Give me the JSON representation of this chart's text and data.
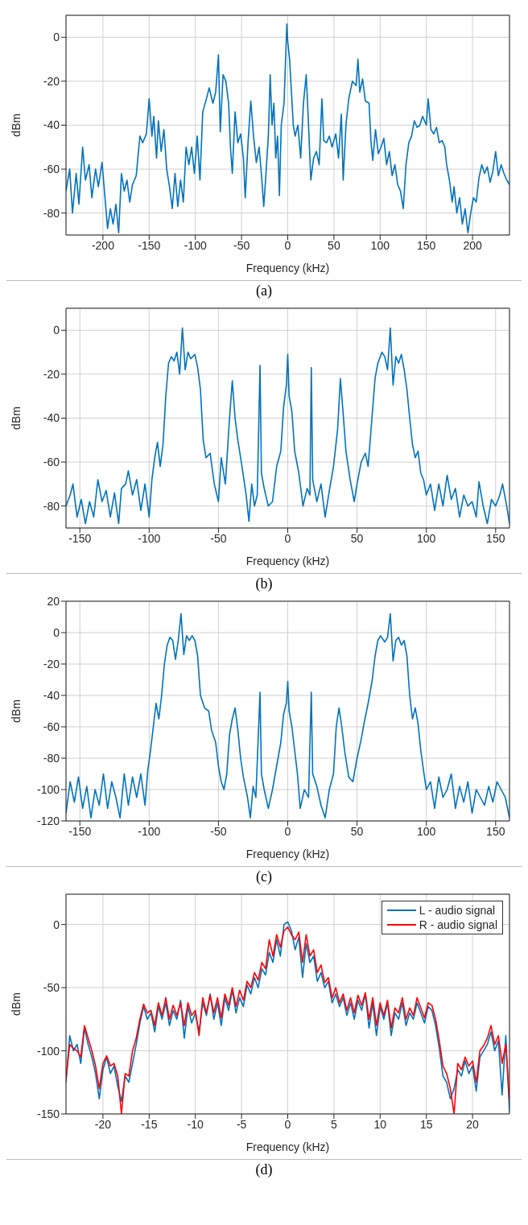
{
  "chart_data": [
    {
      "type": "line",
      "xlabel": "Frequency (kHz)",
      "ylabel": "dBm",
      "annotations": [
        "(a)"
      ],
      "xlim": [
        -240,
        240
      ],
      "ylim": [
        -90,
        10
      ],
      "xticks": [
        -200,
        -150,
        -100,
        -50,
        0,
        50,
        100,
        150,
        200
      ],
      "yticks": [
        -80,
        -60,
        -40,
        -20,
        0
      ],
      "grid": true,
      "line_style": "solid",
      "marker": "none",
      "series": [
        {
          "color": "#0072bd",
          "x": [
            -240,
            -236,
            -233,
            -229,
            -226,
            -222,
            -219,
            -215,
            -212,
            -208,
            -205,
            -201,
            -198,
            -195,
            -192,
            -189,
            -186,
            -183,
            -180,
            -177,
            -174,
            -171,
            -168,
            -164,
            -160,
            -157,
            -153,
            -150,
            -147,
            -145,
            -142,
            -140,
            -137,
            -134,
            -131,
            -128,
            -125,
            -122,
            -119,
            -116,
            -113,
            -110,
            -107,
            -104,
            -101,
            -98,
            -95,
            -92,
            -88,
            -85,
            -81,
            -78,
            -75,
            -73,
            -70,
            -67,
            -64,
            -62,
            -60,
            -57,
            -54,
            -51,
            -48,
            -46,
            -43,
            -40,
            -37,
            -34,
            -31,
            -28,
            -26,
            -24,
            -21,
            -19,
            -17,
            -15,
            -13,
            -11,
            -9,
            -7,
            -4,
            -1,
            0,
            2,
            4,
            6,
            8,
            11,
            14,
            17,
            20,
            22,
            25,
            28,
            31,
            34,
            37,
            39,
            42,
            45,
            48,
            52,
            55,
            58,
            60,
            63,
            66,
            70,
            74,
            76,
            78,
            81,
            84,
            88,
            90,
            92,
            95,
            98,
            101,
            104,
            107,
            110,
            113,
            116,
            119,
            122,
            125,
            128,
            131,
            134,
            137,
            140,
            143,
            146,
            150,
            152,
            155,
            158,
            161,
            164,
            167,
            170,
            172,
            175,
            178,
            180,
            183,
            186,
            189,
            192,
            195,
            198,
            201,
            204,
            207,
            210,
            213,
            216,
            219,
            222,
            225,
            228,
            231,
            234,
            237,
            240
          ],
          "values": [
            -70,
            -60,
            -80,
            -62,
            -76,
            -50,
            -65,
            -58,
            -73,
            -60,
            -68,
            -57,
            -72,
            -87,
            -78,
            -85,
            -76,
            -89,
            -62,
            -70,
            -65,
            -75,
            -67,
            -63,
            -45,
            -48,
            -44,
            -28,
            -45,
            -36,
            -55,
            -38,
            -52,
            -42,
            -60,
            -68,
            -78,
            -62,
            -77,
            -65,
            -75,
            -50,
            -58,
            -50,
            -62,
            -45,
            -65,
            -34,
            -28,
            -23,
            -30,
            -25,
            -8,
            -43,
            -17,
            -20,
            -30,
            -50,
            -62,
            -34,
            -48,
            -44,
            -55,
            -73,
            -48,
            -29,
            -45,
            -57,
            -50,
            -65,
            -77,
            -65,
            -45,
            -17,
            -40,
            -30,
            -55,
            -45,
            -72,
            -40,
            -30,
            6,
            -2,
            -10,
            -25,
            -40,
            -45,
            -40,
            -55,
            -30,
            -17,
            -35,
            -65,
            -55,
            -52,
            -58,
            -28,
            -47,
            -48,
            -45,
            -50,
            -44,
            -55,
            -35,
            -65,
            -40,
            -28,
            -20,
            -22,
            -10,
            -25,
            -19,
            -29,
            -30,
            -47,
            -56,
            -42,
            -53,
            -50,
            -46,
            -58,
            -52,
            -63,
            -58,
            -67,
            -70,
            -78,
            -58,
            -48,
            -45,
            -38,
            -41,
            -40,
            -36,
            -40,
            -28,
            -42,
            -44,
            -41,
            -48,
            -47,
            -50,
            -58,
            -65,
            -75,
            -68,
            -80,
            -73,
            -85,
            -78,
            -89,
            -80,
            -73,
            -75,
            -64,
            -58,
            -62,
            -59,
            -66,
            -61,
            -52,
            -63,
            -58,
            -62,
            -65,
            -67
          ]
        }
      ]
    },
    {
      "type": "line",
      "xlabel": "Frequency (kHz)",
      "ylabel": "dBm",
      "annotations": [
        "(b)"
      ],
      "xlim": [
        -160,
        160
      ],
      "ylim": [
        -90,
        10
      ],
      "xticks": [
        -150,
        -100,
        -50,
        0,
        50,
        100,
        150
      ],
      "yticks": [
        -80,
        -60,
        -40,
        -20,
        0
      ],
      "grid": true,
      "line_style": "solid",
      "marker": "none",
      "series": [
        {
          "color": "#0072bd",
          "x": [
            -160,
            -157,
            -155,
            -152,
            -149,
            -146,
            -143,
            -140,
            -137,
            -134,
            -131,
            -128,
            -125,
            -122,
            -120,
            -117,
            -115,
            -112,
            -109,
            -106,
            -103,
            -100,
            -98,
            -96,
            -94,
            -92,
            -90,
            -88,
            -86,
            -84,
            -82,
            -80,
            -78,
            -76,
            -74,
            -72,
            -70,
            -67,
            -65,
            -63,
            -61,
            -59,
            -56,
            -53,
            -50,
            -48,
            -45,
            -42,
            -40,
            -38,
            -36,
            -33,
            -30,
            -28,
            -26,
            -24,
            -22,
            -20,
            -19,
            -17,
            -14,
            -11,
            -8,
            -5,
            -3,
            -1,
            0,
            1,
            3,
            5,
            8,
            11,
            14,
            16,
            17,
            18,
            21,
            24,
            27,
            30,
            33,
            36,
            38,
            40,
            42,
            45,
            48,
            50,
            53,
            56,
            58,
            61,
            63,
            65,
            68,
            70,
            72,
            74,
            76,
            78,
            80,
            82,
            84,
            86,
            88,
            90,
            92,
            94,
            96,
            98,
            100,
            103,
            106,
            109,
            112,
            115,
            118,
            121,
            124,
            127,
            130,
            133,
            136,
            138,
            141,
            144,
            147,
            150,
            153,
            155,
            158,
            160
          ],
          "values": [
            -80,
            -75,
            -70,
            -85,
            -77,
            -88,
            -78,
            -85,
            -68,
            -78,
            -73,
            -85,
            -74,
            -88,
            -72,
            -70,
            -64,
            -75,
            -68,
            -82,
            -70,
            -85,
            -68,
            -58,
            -51,
            -62,
            -52,
            -30,
            -15,
            -12,
            -14,
            -10,
            -20,
            1,
            -18,
            -10,
            -13,
            -11,
            -17,
            -27,
            -50,
            -58,
            -56,
            -70,
            -78,
            -58,
            -70,
            -40,
            -23,
            -40,
            -50,
            -62,
            -75,
            -87,
            -70,
            -80,
            -75,
            -16,
            -65,
            -72,
            -80,
            -78,
            -62,
            -55,
            -35,
            -25,
            -11,
            -30,
            -37,
            -55,
            -65,
            -80,
            -72,
            -75,
            -17,
            -68,
            -78,
            -70,
            -85,
            -73,
            -62,
            -45,
            -22,
            -38,
            -55,
            -68,
            -78,
            -70,
            -60,
            -56,
            -62,
            -38,
            -22,
            -15,
            -10,
            -12,
            -18,
            1,
            -25,
            -12,
            -15,
            -11,
            -18,
            -27,
            -40,
            -52,
            -58,
            -55,
            -65,
            -68,
            -75,
            -70,
            -82,
            -70,
            -80,
            -66,
            -77,
            -72,
            -85,
            -75,
            -80,
            -78,
            -85,
            -69,
            -80,
            -88,
            -77,
            -80,
            -75,
            -70,
            -80,
            -88
          ]
        }
      ]
    },
    {
      "type": "line",
      "xlabel": "Frequency (kHz)",
      "ylabel": "dBm",
      "annotations": [
        "(c)"
      ],
      "xlim": [
        -160,
        160
      ],
      "ylim": [
        -120,
        20
      ],
      "xticks": [
        -150,
        -100,
        -50,
        0,
        50,
        100,
        150
      ],
      "yticks": [
        -120,
        -100,
        -80,
        -60,
        -40,
        -20,
        0,
        20
      ],
      "grid": true,
      "line_style": "solid",
      "marker": "none",
      "series": [
        {
          "color": "#0072bd",
          "x": [
            -160,
            -157,
            -154,
            -151,
            -148,
            -145,
            -142,
            -139,
            -136,
            -133,
            -130,
            -127,
            -124,
            -121,
            -118,
            -115,
            -112,
            -109,
            -106,
            -103,
            -101,
            -99,
            -97,
            -95,
            -93,
            -91,
            -89,
            -87,
            -85,
            -83,
            -81,
            -79,
            -77,
            -75,
            -73,
            -71,
            -69,
            -67,
            -65,
            -63,
            -60,
            -57,
            -55,
            -52,
            -50,
            -48,
            -46,
            -44,
            -42,
            -40,
            -38,
            -36,
            -34,
            -32,
            -29,
            -27,
            -25,
            -23,
            -20,
            -19,
            -17,
            -14,
            -11,
            -8,
            -5,
            -3,
            -1,
            0,
            1,
            3,
            5,
            7,
            9,
            12,
            15,
            17,
            18,
            21,
            24,
            27,
            30,
            33,
            35,
            37,
            39,
            41,
            44,
            47,
            50,
            53,
            55,
            58,
            61,
            63,
            65,
            67,
            70,
            72,
            74,
            76,
            78,
            80,
            82,
            84,
            86,
            88,
            90,
            92,
            94,
            96,
            98,
            100,
            103,
            106,
            109,
            112,
            115,
            118,
            121,
            124,
            127,
            130,
            133,
            136,
            139,
            142,
            145,
            148,
            151,
            154,
            157,
            160
          ],
          "values": [
            -115,
            -95,
            -108,
            -92,
            -112,
            -98,
            -118,
            -100,
            -110,
            -90,
            -112,
            -95,
            -105,
            -118,
            -90,
            -110,
            -92,
            -105,
            -90,
            -110,
            -88,
            -75,
            -60,
            -45,
            -55,
            -40,
            -20,
            -8,
            -3,
            -5,
            -17,
            -5,
            12,
            -14,
            -2,
            -5,
            -2,
            -5,
            -15,
            -40,
            -48,
            -50,
            -62,
            -70,
            -85,
            -95,
            -100,
            -90,
            -65,
            -55,
            -48,
            -62,
            -80,
            -92,
            -105,
            -118,
            -98,
            -105,
            -38,
            -90,
            -100,
            -112,
            -100,
            -85,
            -70,
            -52,
            -45,
            -31,
            -50,
            -60,
            -75,
            -90,
            -112,
            -100,
            -105,
            -38,
            -90,
            -98,
            -110,
            -118,
            -100,
            -90,
            -60,
            -48,
            -60,
            -75,
            -92,
            -95,
            -80,
            -68,
            -58,
            -45,
            -30,
            -15,
            -5,
            -2,
            -6,
            -3,
            12,
            -18,
            -5,
            -3,
            -8,
            -5,
            -15,
            -40,
            -55,
            -48,
            -58,
            -75,
            -88,
            -100,
            -95,
            -112,
            -92,
            -105,
            -100,
            -90,
            -112,
            -98,
            -108,
            -95,
            -115,
            -100,
            -105,
            -110,
            -98,
            -108,
            -95,
            -100,
            -105,
            -118
          ]
        }
      ]
    },
    {
      "type": "line",
      "xlabel": "Frequency (kHz)",
      "ylabel": "dBm",
      "annotations": [
        "(d)"
      ],
      "xlim": [
        -24,
        24
      ],
      "ylim": [
        -150,
        24
      ],
      "xticks": [
        -20,
        -15,
        -10,
        -5,
        0,
        5,
        10,
        15,
        20
      ],
      "yticks": [
        -150,
        -100,
        -50,
        0
      ],
      "grid": true,
      "legend": "top right",
      "line_style": "solid",
      "marker": "none",
      "series": [
        {
          "name": "L - audio signal",
          "color": "#0072bd",
          "x": [
            -24,
            -23.6,
            -23.2,
            -22.8,
            -22.4,
            -22,
            -21.6,
            -21.2,
            -20.8,
            -20.4,
            -20,
            -19.6,
            -19.2,
            -18.8,
            -18.4,
            -18,
            -17.6,
            -17.2,
            -16.8,
            -16.4,
            -16,
            -15.6,
            -15.2,
            -14.8,
            -14.4,
            -14,
            -13.6,
            -13.2,
            -12.8,
            -12.4,
            -12,
            -11.6,
            -11.2,
            -10.8,
            -10.4,
            -10,
            -9.6,
            -9.2,
            -8.8,
            -8.4,
            -8,
            -7.6,
            -7.2,
            -6.8,
            -6.4,
            -6,
            -5.6,
            -5.2,
            -4.8,
            -4.4,
            -4,
            -3.6,
            -3.2,
            -2.8,
            -2.4,
            -2,
            -1.6,
            -1.2,
            -0.8,
            -0.4,
            0,
            0.4,
            0.8,
            1.2,
            1.6,
            2,
            2.4,
            2.8,
            3.2,
            3.6,
            4,
            4.4,
            4.8,
            5.2,
            5.6,
            6,
            6.4,
            6.8,
            7.2,
            7.6,
            8,
            8.4,
            8.8,
            9.2,
            9.6,
            10,
            10.4,
            10.8,
            11.2,
            11.6,
            12,
            12.4,
            12.8,
            13.2,
            13.6,
            14,
            14.4,
            14.8,
            15.2,
            15.6,
            16,
            16.4,
            16.8,
            17.2,
            17.6,
            18,
            18.4,
            18.8,
            19.2,
            19.6,
            20,
            20.4,
            20.8,
            21.2,
            21.6,
            22,
            22.4,
            22.8,
            23.2,
            23.6,
            24
          ],
          "values": [
            -125,
            -88,
            -100,
            -95,
            -110,
            -82,
            -95,
            -105,
            -118,
            -138,
            -115,
            -105,
            -118,
            -112,
            -128,
            -140,
            -120,
            -125,
            -110,
            -95,
            -78,
            -65,
            -75,
            -70,
            -85,
            -65,
            -75,
            -62,
            -80,
            -68,
            -75,
            -60,
            -90,
            -65,
            -78,
            -70,
            -85,
            -62,
            -72,
            -55,
            -75,
            -62,
            -80,
            -58,
            -68,
            -52,
            -70,
            -58,
            -65,
            -48,
            -55,
            -42,
            -50,
            -35,
            -40,
            -22,
            -30,
            -12,
            -25,
            0,
            2,
            -5,
            -20,
            -10,
            -42,
            -15,
            -30,
            -25,
            -45,
            -38,
            -50,
            -45,
            -62,
            -55,
            -65,
            -58,
            -72,
            -62,
            -75,
            -60,
            -68,
            -55,
            -82,
            -62,
            -88,
            -65,
            -75,
            -62,
            -88,
            -70,
            -75,
            -62,
            -80,
            -70,
            -75,
            -62,
            -70,
            -78,
            -65,
            -68,
            -80,
            -98,
            -120,
            -125,
            -138,
            -130,
            -115,
            -120,
            -108,
            -118,
            -112,
            -132,
            -105,
            -100,
            -95,
            -85,
            -100,
            -92,
            -135,
            -88,
            -148
          ]
        },
        {
          "name": "R - audio signal",
          "color": "#ff0000",
          "x": [
            -24,
            -23.6,
            -23.2,
            -22.8,
            -22.4,
            -22,
            -21.6,
            -21.2,
            -20.8,
            -20.4,
            -20,
            -19.6,
            -19.2,
            -18.8,
            -18.4,
            -18,
            -17.6,
            -17.2,
            -16.8,
            -16.4,
            -16,
            -15.6,
            -15.2,
            -14.8,
            -14.4,
            -14,
            -13.6,
            -13.2,
            -12.8,
            -12.4,
            -12,
            -11.6,
            -11.2,
            -10.8,
            -10.4,
            -10,
            -9.6,
            -9.2,
            -8.8,
            -8.4,
            -8,
            -7.6,
            -7.2,
            -6.8,
            -6.4,
            -6,
            -5.6,
            -5.2,
            -4.8,
            -4.4,
            -4,
            -3.6,
            -3.2,
            -2.8,
            -2.4,
            -2,
            -1.6,
            -1.2,
            -0.8,
            -0.4,
            0,
            0.4,
            0.8,
            1.2,
            1.6,
            2,
            2.4,
            2.8,
            3.2,
            3.6,
            4,
            4.4,
            4.8,
            5.2,
            5.6,
            6,
            6.4,
            6.8,
            7.2,
            7.6,
            8,
            8.4,
            8.8,
            9.2,
            9.6,
            10,
            10.4,
            10.8,
            11.2,
            11.6,
            12,
            12.4,
            12.8,
            13.2,
            13.6,
            14,
            14.4,
            14.8,
            15.2,
            15.6,
            16,
            16.4,
            16.8,
            17.2,
            17.6,
            18,
            18.4,
            18.8,
            19.2,
            19.6,
            20,
            20.4,
            20.8,
            21.2,
            21.6,
            22,
            22.4,
            22.8,
            23.2,
            23.6,
            24
          ],
          "values": [
            -122,
            -95,
            -98,
            -100,
            -105,
            -80,
            -90,
            -100,
            -112,
            -130,
            -110,
            -104,
            -112,
            -110,
            -120,
            -150,
            -118,
            -120,
            -100,
            -90,
            -75,
            -63,
            -70,
            -68,
            -80,
            -62,
            -72,
            -58,
            -75,
            -64,
            -72,
            -62,
            -80,
            -62,
            -72,
            -68,
            -88,
            -58,
            -70,
            -56,
            -70,
            -58,
            -74,
            -55,
            -64,
            -50,
            -65,
            -52,
            -60,
            -45,
            -50,
            -38,
            -44,
            -30,
            -35,
            -12,
            -25,
            -8,
            -18,
            -5,
            -2,
            -8,
            -12,
            -6,
            -30,
            -8,
            -25,
            -20,
            -38,
            -32,
            -46,
            -42,
            -58,
            -50,
            -62,
            -55,
            -68,
            -58,
            -70,
            -56,
            -64,
            -54,
            -75,
            -58,
            -80,
            -62,
            -72,
            -60,
            -82,
            -66,
            -70,
            -58,
            -75,
            -66,
            -72,
            -58,
            -66,
            -74,
            -62,
            -64,
            -75,
            -92,
            -112,
            -118,
            -130,
            -150,
            -110,
            -115,
            -105,
            -112,
            -108,
            -125,
            -100,
            -96,
            -90,
            -80,
            -95,
            -88,
            -110,
            -95,
            -140
          ]
        }
      ]
    }
  ]
}
